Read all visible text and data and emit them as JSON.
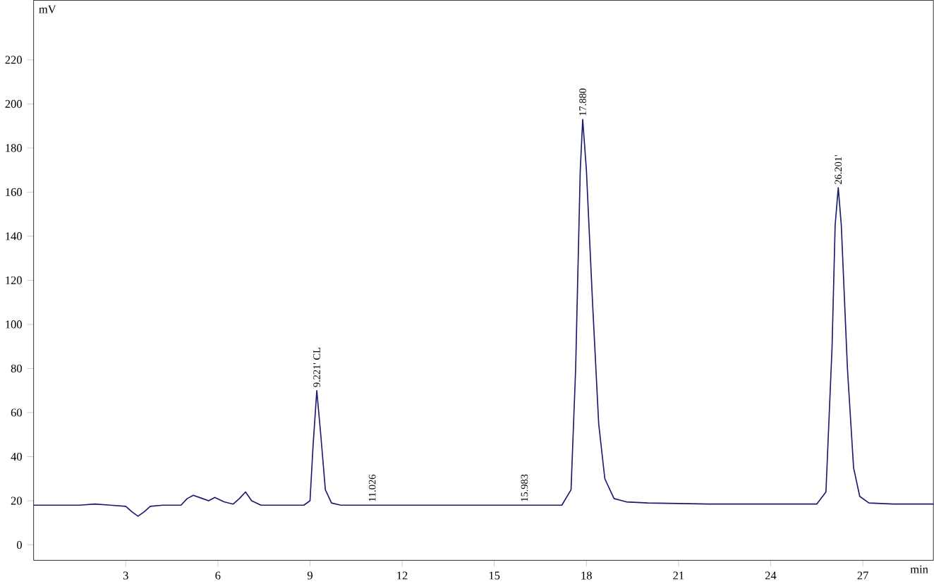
{
  "chart_data": {
    "type": "line",
    "xlabel": "min",
    "ylabel": "mV",
    "x": [
      0,
      1.5,
      2.0,
      2.5,
      3.0,
      3.2,
      3.4,
      3.6,
      3.8,
      4.2,
      4.8,
      5.0,
      5.2,
      5.5,
      5.7,
      5.9,
      6.2,
      6.5,
      6.7,
      6.9,
      7.1,
      7.4,
      8.0,
      8.8,
      9.0,
      9.1,
      9.221,
      9.35,
      9.5,
      9.7,
      10.0,
      12.0,
      14.0,
      16.0,
      17.2,
      17.5,
      17.65,
      17.8,
      17.88,
      18.0,
      18.2,
      18.4,
      18.6,
      18.9,
      19.3,
      20.0,
      22.0,
      24.0,
      25.5,
      25.8,
      26.0,
      26.1,
      26.201,
      26.3,
      26.5,
      26.7,
      26.9,
      27.2,
      28.0,
      29.3
    ],
    "series": [
      {
        "color": "#1a1a6e",
        "values": [
          18,
          18,
          18.5,
          18,
          17.5,
          15,
          13,
          15,
          17.5,
          18,
          18,
          21,
          22.5,
          21,
          20,
          21.5,
          19.5,
          18.5,
          21,
          24,
          20,
          18,
          18,
          18,
          20,
          45,
          70,
          50,
          25,
          19,
          18,
          18,
          18,
          18,
          18,
          25,
          80,
          170,
          193,
          170,
          110,
          55,
          30,
          21,
          19.5,
          19,
          18.5,
          18.5,
          18.5,
          24,
          90,
          145,
          162,
          145,
          80,
          35,
          22,
          19,
          18.5,
          18.5
        ]
      }
    ],
    "xlim": [
      0,
      29.3
    ],
    "ylim": [
      -7,
      247
    ],
    "xticks": [
      3,
      6,
      9,
      12,
      15,
      18,
      21,
      24,
      27
    ],
    "yticks": [
      0,
      20,
      40,
      60,
      80,
      100,
      120,
      140,
      160,
      180,
      200,
      220
    ],
    "annotations": [
      {
        "text": "9.221' CL",
        "x": 9.221,
        "y": 70
      },
      {
        "text": "11.026",
        "x": 11.026,
        "y": 18
      },
      {
        "text": "15.983",
        "x": 15.983,
        "y": 18
      },
      {
        "text": "17.880",
        "x": 17.88,
        "y": 193
      },
      {
        "text": "26.201'",
        "x": 26.201,
        "y": 162
      }
    ],
    "marker": "none",
    "line_style": "solid"
  }
}
